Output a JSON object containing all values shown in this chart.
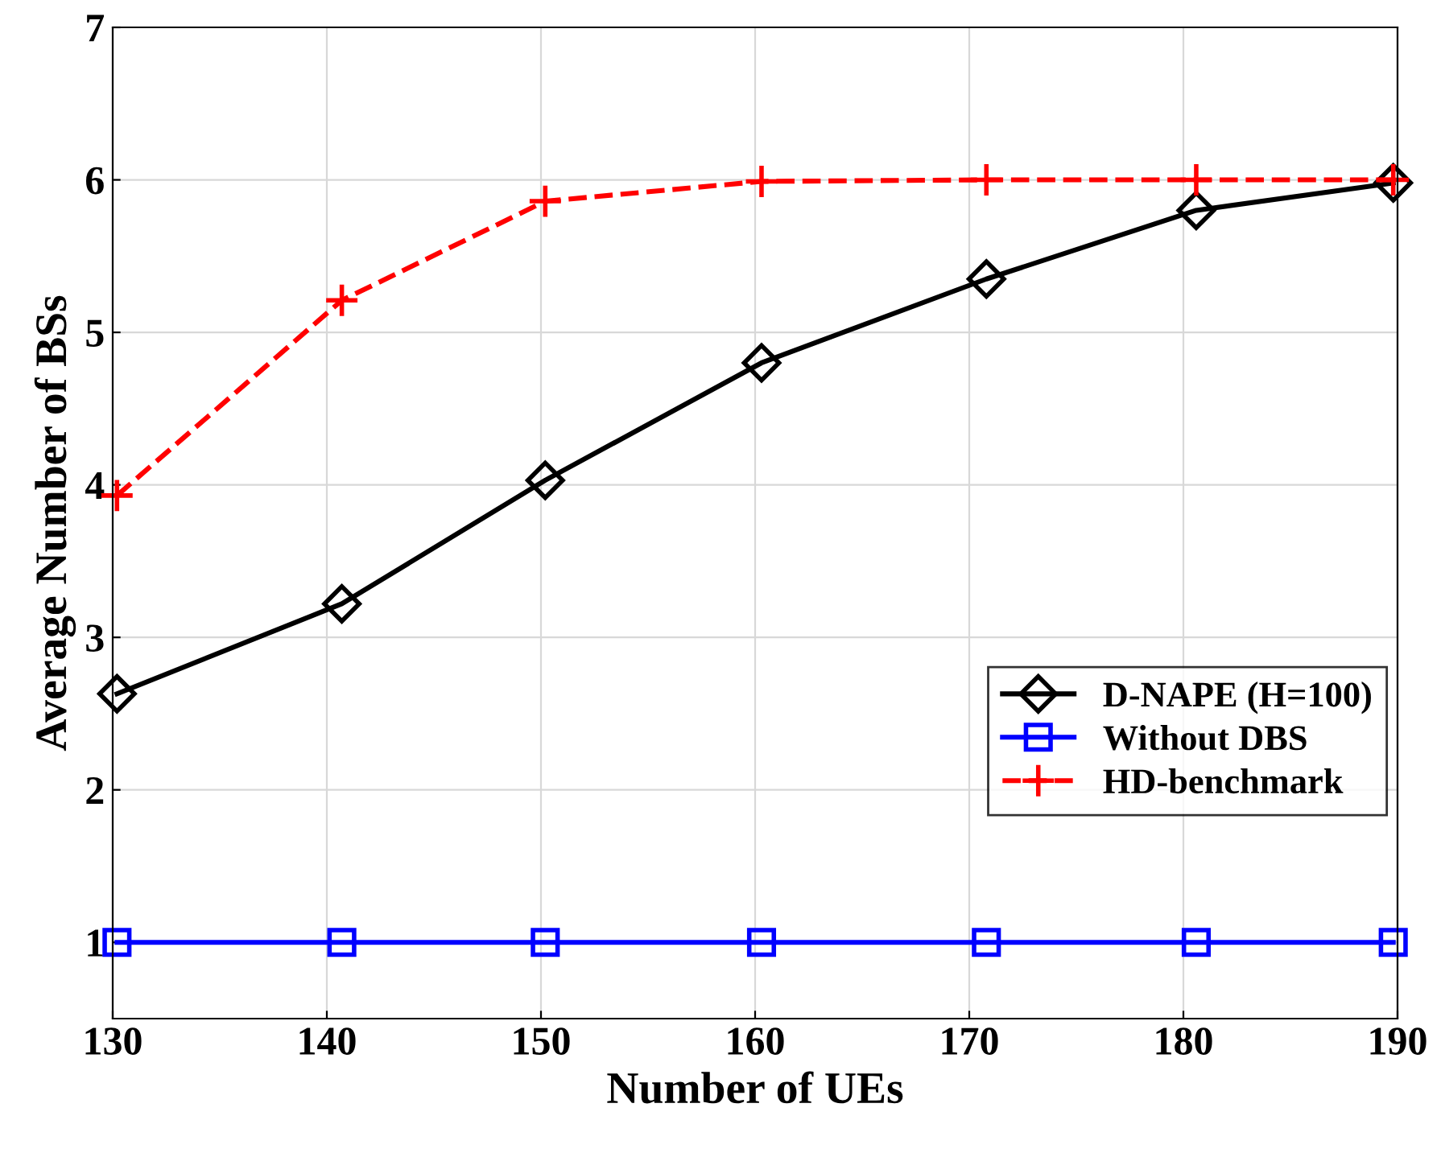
{
  "chart_data": {
    "type": "line",
    "xlabel": "Number of UEs",
    "ylabel": "Average Number of BSs",
    "x": [
      130.2,
      140.7,
      150.2,
      160.3,
      170.8,
      180.6,
      189.8
    ],
    "series": [
      {
        "name": "D-NAPE (H=100)",
        "color": "#000000",
        "marker": "diamond",
        "line_style": "solid",
        "values": [
          2.63,
          3.22,
          4.03,
          4.8,
          5.35,
          5.8,
          5.98
        ]
      },
      {
        "name": "Without DBS",
        "color": "#0000ff",
        "marker": "square",
        "line_style": "solid",
        "values": [
          1,
          1,
          1,
          1,
          1,
          1,
          1
        ]
      },
      {
        "name": "HD-benchmark",
        "color": "#ff0000",
        "marker": "plus",
        "line_style": "dashed",
        "values": [
          3.93,
          5.21,
          5.86,
          5.99,
          6.0,
          6.0,
          6.0
        ]
      }
    ],
    "xlim": [
      130,
      190
    ],
    "xticks": [
      130,
      140,
      150,
      160,
      170,
      180,
      190
    ],
    "ylim": [
      0.5,
      7
    ],
    "yticks": [
      1,
      2,
      3,
      4,
      5,
      6,
      7
    ],
    "grid": true,
    "legend": "right"
  }
}
